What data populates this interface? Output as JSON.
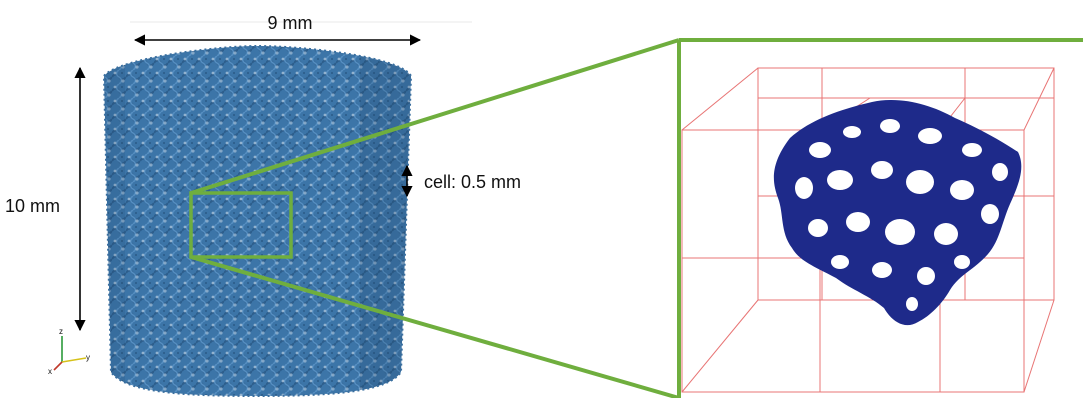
{
  "labels": {
    "width": "9 mm",
    "height": "10 mm",
    "cell": "cell: 0.5 mm"
  },
  "axes_triad": {
    "z": "z",
    "y": "y",
    "x": "x"
  },
  "colors": {
    "foam": "#3f78ad",
    "foam_dark": "#2d5f8f",
    "highlight": "#6fae3e",
    "detail": "#1e2a8a",
    "bbox": "#e87474",
    "arrow": "#000000"
  }
}
